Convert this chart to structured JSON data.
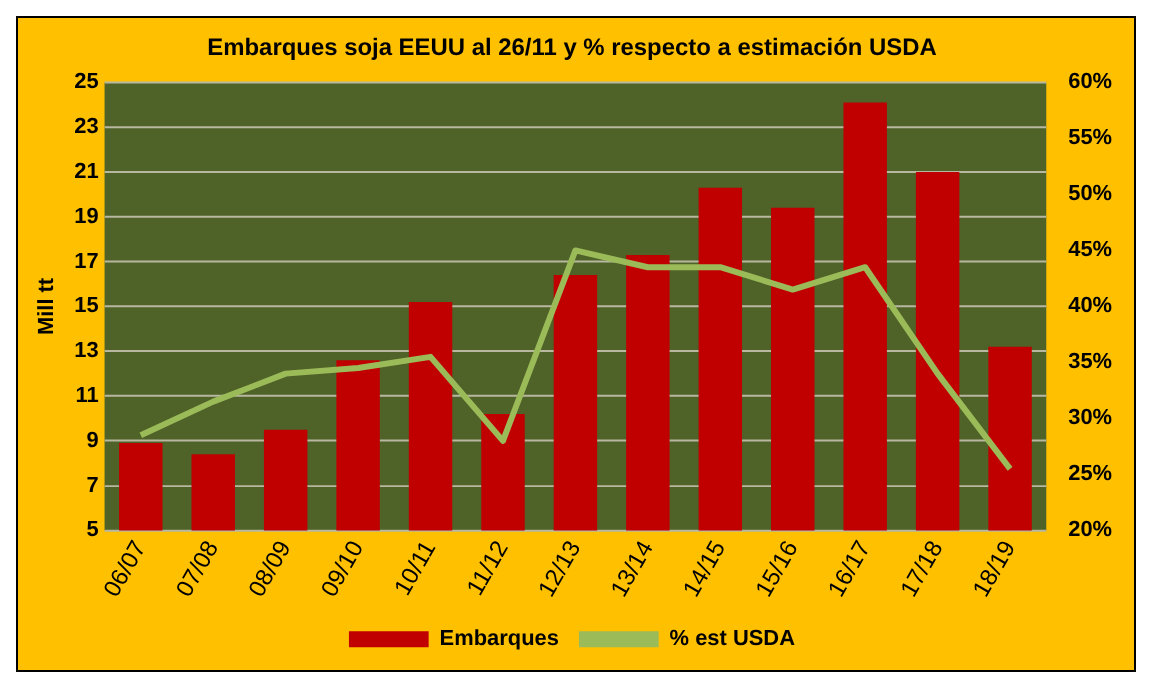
{
  "chart_data": {
    "type": "bar",
    "title": "Embarques soja EEUU al 26/11 y % respecto a estimación USDA",
    "ylabel": "Mill tt",
    "categories": [
      "06/07",
      "07/08",
      "08/09",
      "09/10",
      "10/11",
      "11/12",
      "12/13",
      "13/14",
      "14/15",
      "15/16",
      "16/17",
      "17/18",
      "18/19"
    ],
    "series": [
      {
        "name": "Embarques",
        "color": "#c00000",
        "values": [
          8.9,
          8.4,
          9.5,
          12.6,
          15.2,
          10.2,
          16.4,
          17.3,
          20.3,
          19.4,
          24.1,
          21.0,
          13.2
        ]
      },
      {
        "name": "% est USDA",
        "type": "line",
        "axis": "y2",
        "color": "#9bbb59",
        "values": [
          28.5,
          31.5,
          34,
          34.5,
          35.5,
          28,
          45,
          43.5,
          43.5,
          41.5,
          43.5,
          34,
          25.5
        ]
      }
    ],
    "ylim": [
      5,
      25
    ],
    "yticks": [
      5,
      7,
      9,
      11,
      13,
      15,
      17,
      19,
      21,
      23,
      25
    ],
    "y2lim": [
      20,
      60
    ],
    "y2ticks": [
      {
        "value": 20,
        "label": "20%"
      },
      {
        "value": 25,
        "label": "25%"
      },
      {
        "value": 30,
        "label": "30%"
      },
      {
        "value": 35,
        "label": "35%"
      },
      {
        "value": 40,
        "label": "40%"
      },
      {
        "value": 45,
        "label": "45%"
      },
      {
        "value": 50,
        "label": "50%"
      },
      {
        "value": 55,
        "label": "55%"
      },
      {
        "value": 60,
        "label": "60%"
      }
    ],
    "grid": "y",
    "legend": "bottom",
    "marker": "none"
  }
}
